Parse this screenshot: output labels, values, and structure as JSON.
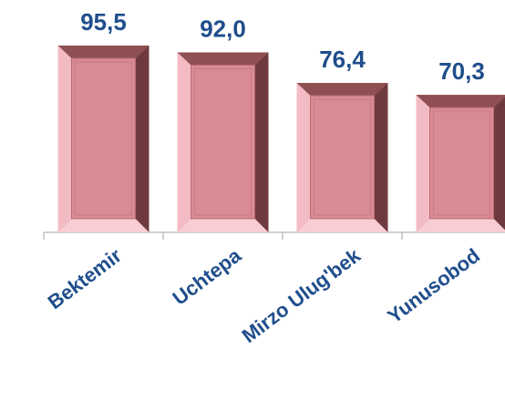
{
  "chart_data": {
    "type": "bar",
    "categories": [
      "Bektemir",
      "Uchtepa",
      "Mirzo Ulug'bek",
      "Yunusobod"
    ],
    "values": [
      95.5,
      92.0,
      76.4,
      70.3
    ],
    "value_labels": [
      "95,5",
      "92,0",
      "76,4",
      "70,3"
    ],
    "color": "#d98a93",
    "ylim": [
      0,
      100
    ]
  }
}
